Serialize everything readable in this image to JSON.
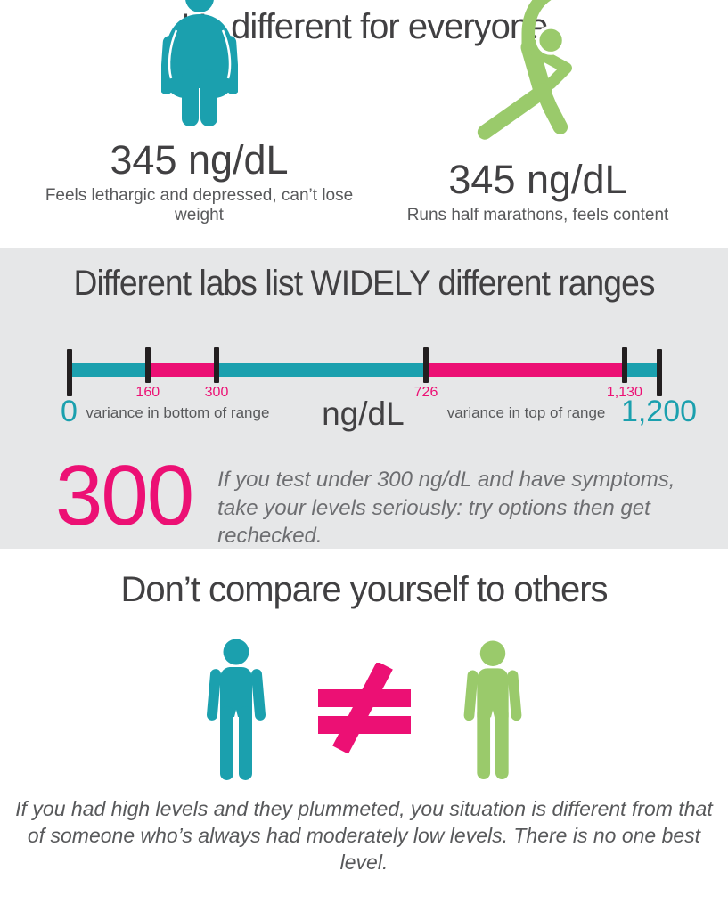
{
  "colors": {
    "teal": "#1BA0AE",
    "green": "#9ACA6B",
    "pink": "#EC1074",
    "dark_text": "#414042",
    "gray_text": "#58595B",
    "italic_text": "#6D6E71",
    "tick_black": "#231F20",
    "section_bg": "#E6E7E8"
  },
  "section1": {
    "title": "It’s different for everyone",
    "left": {
      "icon": "overweight-person-icon",
      "value": "345 ng/dL",
      "caption": "Feels lethargic and depressed, can’t lose weight"
    },
    "right": {
      "icon": "stretching-person-icon",
      "value": "345 ng/dL",
      "caption": "Runs half marathons, feels content"
    }
  },
  "section2": {
    "title": "Different labs list WIDELY different ranges",
    "callout": {
      "number": "300",
      "text": "If you test under 300 ng/dL and have symptoms, take your levels seriously: try options then get rechecked."
    }
  },
  "section3": {
    "title": "Don’t compare yourself to others",
    "symbol": "not-equal",
    "footer": "If you had high levels and they plummeted, you situation is different from that of someone who’s always had moderately low levels. There is no one best level."
  },
  "chart_data": {
    "type": "bar",
    "variant": "range-scale",
    "title": "Different labs list WIDELY different ranges",
    "unit": {
      "label": "ng/dL",
      "at": 598
    },
    "xlim": [
      0,
      1200
    ],
    "ticks": [
      {
        "value": 0,
        "label": "0",
        "style": "end"
      },
      {
        "value": 160,
        "label": "160",
        "style": "inner"
      },
      {
        "value": 300,
        "label": "300",
        "style": "inner"
      },
      {
        "value": 726,
        "label": "726",
        "style": "inner"
      },
      {
        "value": 1130,
        "label": "1,130",
        "style": "inner"
      },
      {
        "value": 1200,
        "label": "1,200",
        "style": "end"
      }
    ],
    "segments": [
      {
        "from": 0,
        "to": 160,
        "color": "teal"
      },
      {
        "from": 160,
        "to": 300,
        "color": "pink"
      },
      {
        "from": 300,
        "to": 726,
        "color": "teal"
      },
      {
        "from": 726,
        "to": 1130,
        "color": "pink"
      },
      {
        "from": 1130,
        "to": 1200,
        "color": "teal"
      }
    ],
    "annotations": [
      {
        "text": "variance in bottom of range",
        "at": 221
      },
      {
        "text": "variance in top of range",
        "at": 930
      }
    ]
  }
}
